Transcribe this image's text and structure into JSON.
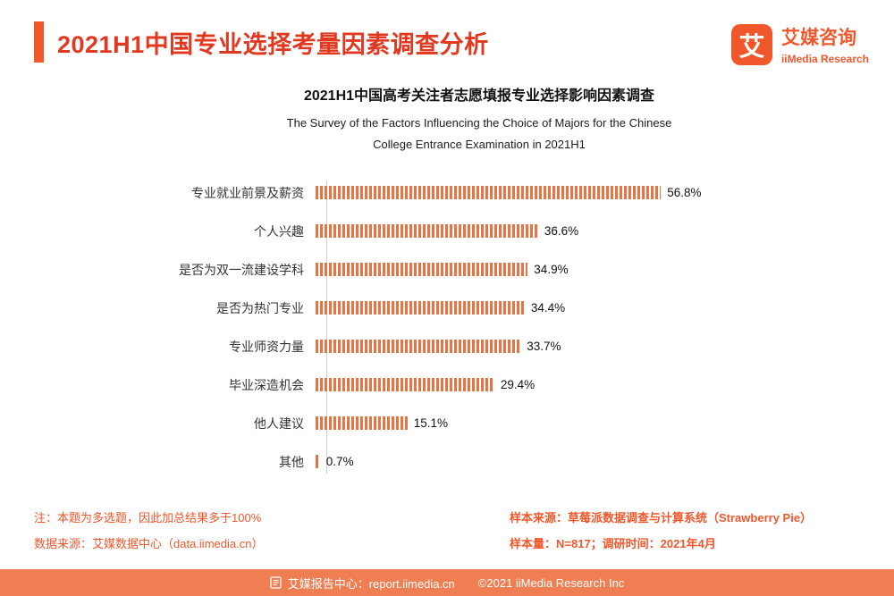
{
  "header": {
    "title": "2021H1中国专业选择考量因素调查分析",
    "logo": {
      "glyph": "艾",
      "brand_cn": "艾媒咨询",
      "brand_en": "iiMedia Research"
    }
  },
  "chart_data": {
    "type": "bar",
    "orientation": "horizontal",
    "title": "2021H1中国高考关注者志愿填报专业选择影响因素调查",
    "subtitle_lines": [
      "The Survey of the Factors Influencing the Choice of Majors for the Chinese",
      "College Entrance Examination in 2021H1"
    ],
    "categories": [
      "专业就业前景及薪资",
      "个人兴趣",
      "是否为双一流建设学科",
      "是否为热门专业",
      "专业师资力量",
      "毕业深造机会",
      "他人建议",
      "其他"
    ],
    "values": [
      56.8,
      36.6,
      34.9,
      34.4,
      33.7,
      29.4,
      15.1,
      0.7
    ],
    "value_labels": [
      "56.8%",
      "36.6%",
      "34.9%",
      "34.4%",
      "33.7%",
      "29.4%",
      "15.1%",
      "0.7%"
    ],
    "unit": "%",
    "xlim": [
      0,
      60
    ],
    "grid": false,
    "legend": "none"
  },
  "notes": {
    "note1": "注：本题为多选题，因此加总结果多于100%",
    "note2": "数据来源：艾媒数据中心（data.iimedia.cn）",
    "sample_source": "样本来源：草莓派数据调查与计算系统（Strawberry Pie）",
    "sample_info": "样本量：N=817；调研时间：2021年4月"
  },
  "footer": {
    "report_center": "艾媒报告中心：report.iimedia.cn",
    "copyright": "©2021  iiMedia Research Inc"
  },
  "colors": {
    "accent": "#F0582C",
    "bar": "#E97342",
    "title-red": "#E2381F",
    "footer-bg": "#EF7E52"
  }
}
